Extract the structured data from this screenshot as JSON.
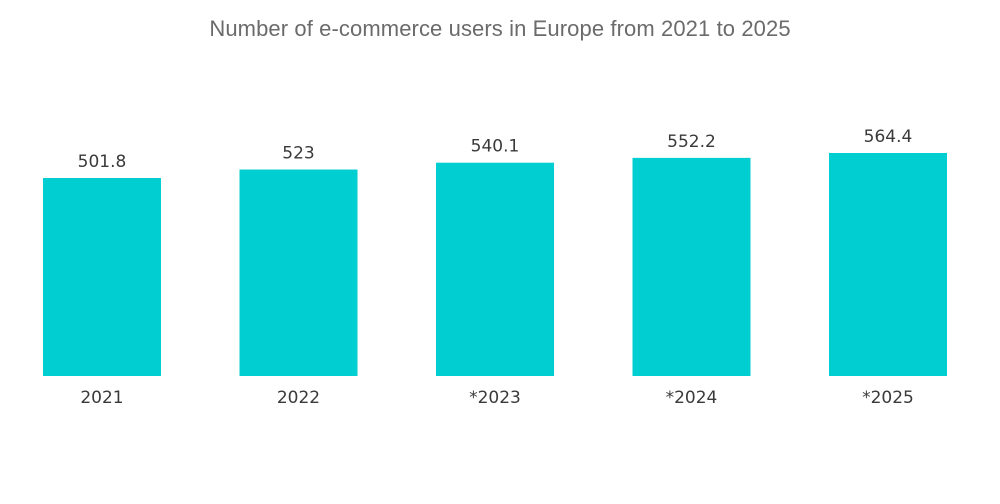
{
  "chart_data": {
    "type": "bar",
    "title": "Number of e-commerce users in Europe from 2021 to 2025",
    "xlabel": "",
    "ylabel": "",
    "categories": [
      "2021",
      "2022",
      "*2023",
      "*2024",
      "*2025"
    ],
    "values": [
      501.8,
      523,
      540.1,
      552.2,
      564.4
    ],
    "value_labels": [
      "501.8",
      "523",
      "540.1",
      "552.2",
      "564.4"
    ],
    "grid": false,
    "legend": "none",
    "colors": {
      "bar": "#00CED1",
      "title": "#6b6b6b",
      "text": "#3a3a3a"
    }
  }
}
